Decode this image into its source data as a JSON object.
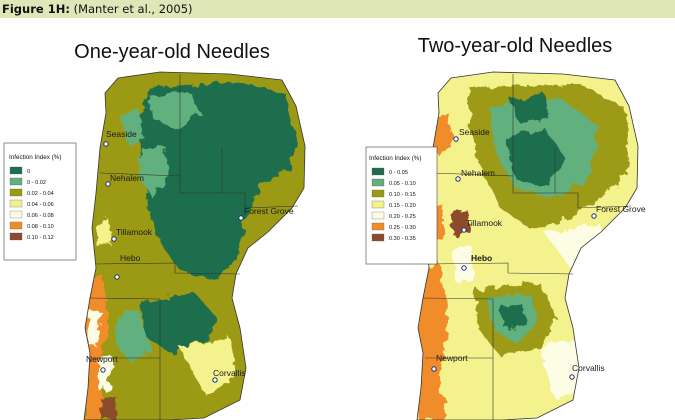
{
  "caption": {
    "label": "Figure 1H:",
    "citation": " (Manter et al., 2005)"
  },
  "colors": {
    "background": "#ffffff",
    "caption_band": "#dfe7b9",
    "class_1": "#1e6e4e",
    "class_2": "#62b07e",
    "class_3": "#9c9a14",
    "class_4": "#f3f28c",
    "class_5": "#fdfde6",
    "class_6": "#f08c2c",
    "class_7": "#8c4b2c",
    "boundary": "#333333",
    "town_marker": "#1c2a6e"
  },
  "maps": [
    {
      "title": "One-year-old Needles",
      "legend": {
        "title": "Infection Index (%)",
        "classes": [
          "0",
          "0 - 0.02",
          "0.02 - 0.04",
          "0.04 - 0.06",
          "0.06 - 0.08",
          "0.08 - 0.10",
          "0.10 - 0.12"
        ]
      },
      "towns": [
        {
          "name": "Seaside"
        },
        {
          "name": "Nehalem"
        },
        {
          "name": "Tillamook"
        },
        {
          "name": "Forest Grove"
        },
        {
          "name": "Hebo"
        },
        {
          "name": "Newport"
        },
        {
          "name": "Corvallis"
        }
      ]
    },
    {
      "title": "Two-year-old Needles",
      "legend": {
        "title": "Infection Index (%)",
        "classes": [
          "0 - 0.05",
          "0.05 - 0.10",
          "0.10 - 0.15",
          "0.15 - 0.20",
          "0.20 - 0.25",
          "0.25 - 0.30",
          "0.30 - 0.35"
        ]
      },
      "towns": [
        {
          "name": "Seaside"
        },
        {
          "name": "Nehalem"
        },
        {
          "name": "Tillamook"
        },
        {
          "name": "Forest Grove"
        },
        {
          "name": "Hebo"
        },
        {
          "name": "Newport"
        },
        {
          "name": "Corvallis"
        }
      ]
    }
  ]
}
